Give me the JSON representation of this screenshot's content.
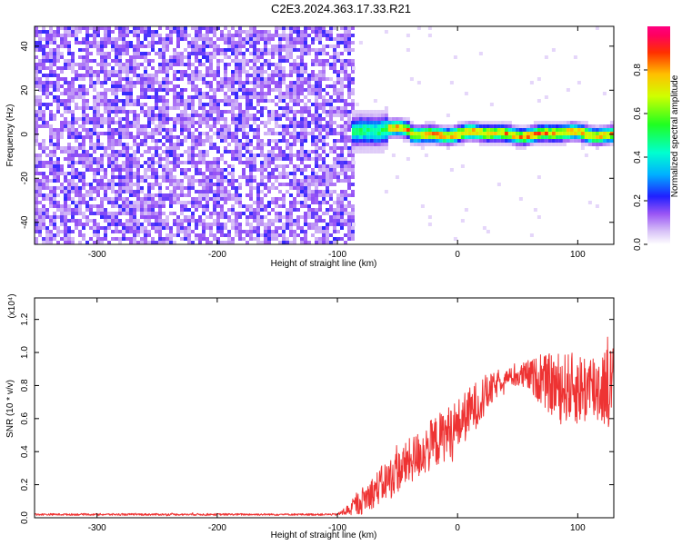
{
  "title": "C2E3.2024.363.17.33.R21",
  "chart_data": [
    {
      "type": "heatmap",
      "xlabel": "Height of straight line (km)",
      "ylabel": "Frequency (Hz)",
      "xlim": [
        -352,
        130
      ],
      "ylim": [
        -50,
        49
      ],
      "xticks": [
        -300,
        -200,
        -100,
        0,
        100
      ],
      "xtick_labels": [
        "-300",
        "-200",
        "-100",
        "0",
        "100"
      ],
      "yticks": [
        -40,
        -20,
        0,
        20,
        40
      ],
      "ytick_labels": [
        "-40",
        "-20",
        "0",
        "20",
        "40"
      ],
      "noise_region_x": [
        -352,
        -88
      ],
      "signal_region_x": [
        -88,
        130
      ],
      "signal_frequency_hz": 1,
      "signal_band_halfwidth_hz": 3,
      "grid": false,
      "colorbar": {
        "label": "Normalized spectral amplitude",
        "range": [
          0,
          1
        ],
        "ticks": [
          0.0,
          0.2,
          0.4,
          0.6,
          0.8
        ],
        "tick_labels": [
          "0.0",
          "0.2",
          "0.4",
          "0.6",
          "0.8"
        ]
      }
    },
    {
      "type": "line",
      "xlabel": "Height of straight line (km)",
      "ylabel": "SNR (10 * v/v)",
      "multiplier": "(x10⁴)",
      "xlim": [
        -352,
        130
      ],
      "ylim": [
        0,
        1.33
      ],
      "xticks": [
        -300,
        -200,
        -100,
        0,
        100
      ],
      "xtick_labels": [
        "-300",
        "-200",
        "-100",
        "0",
        "100"
      ],
      "yticks": [
        0.0,
        0.2,
        0.4,
        0.6,
        0.8,
        1.0,
        1.2
      ],
      "ytick_labels": [
        "0.0",
        "0.2",
        "0.4",
        "0.6",
        "0.8",
        "1.0",
        "1.2"
      ],
      "color": "#ee3333",
      "grid": false,
      "envelope": {
        "x": [
          -352,
          -100,
          -90,
          -80,
          -60,
          -40,
          -20,
          0,
          20,
          40,
          60,
          80,
          100,
          130
        ],
        "mean": [
          0.02,
          0.02,
          0.05,
          0.1,
          0.22,
          0.34,
          0.45,
          0.56,
          0.72,
          0.85,
          0.86,
          0.8,
          0.78,
          0.8
        ],
        "amp": [
          0.006,
          0.006,
          0.04,
          0.08,
          0.12,
          0.14,
          0.16,
          0.16,
          0.14,
          0.04,
          0.1,
          0.2,
          0.22,
          0.25
        ]
      }
    }
  ]
}
